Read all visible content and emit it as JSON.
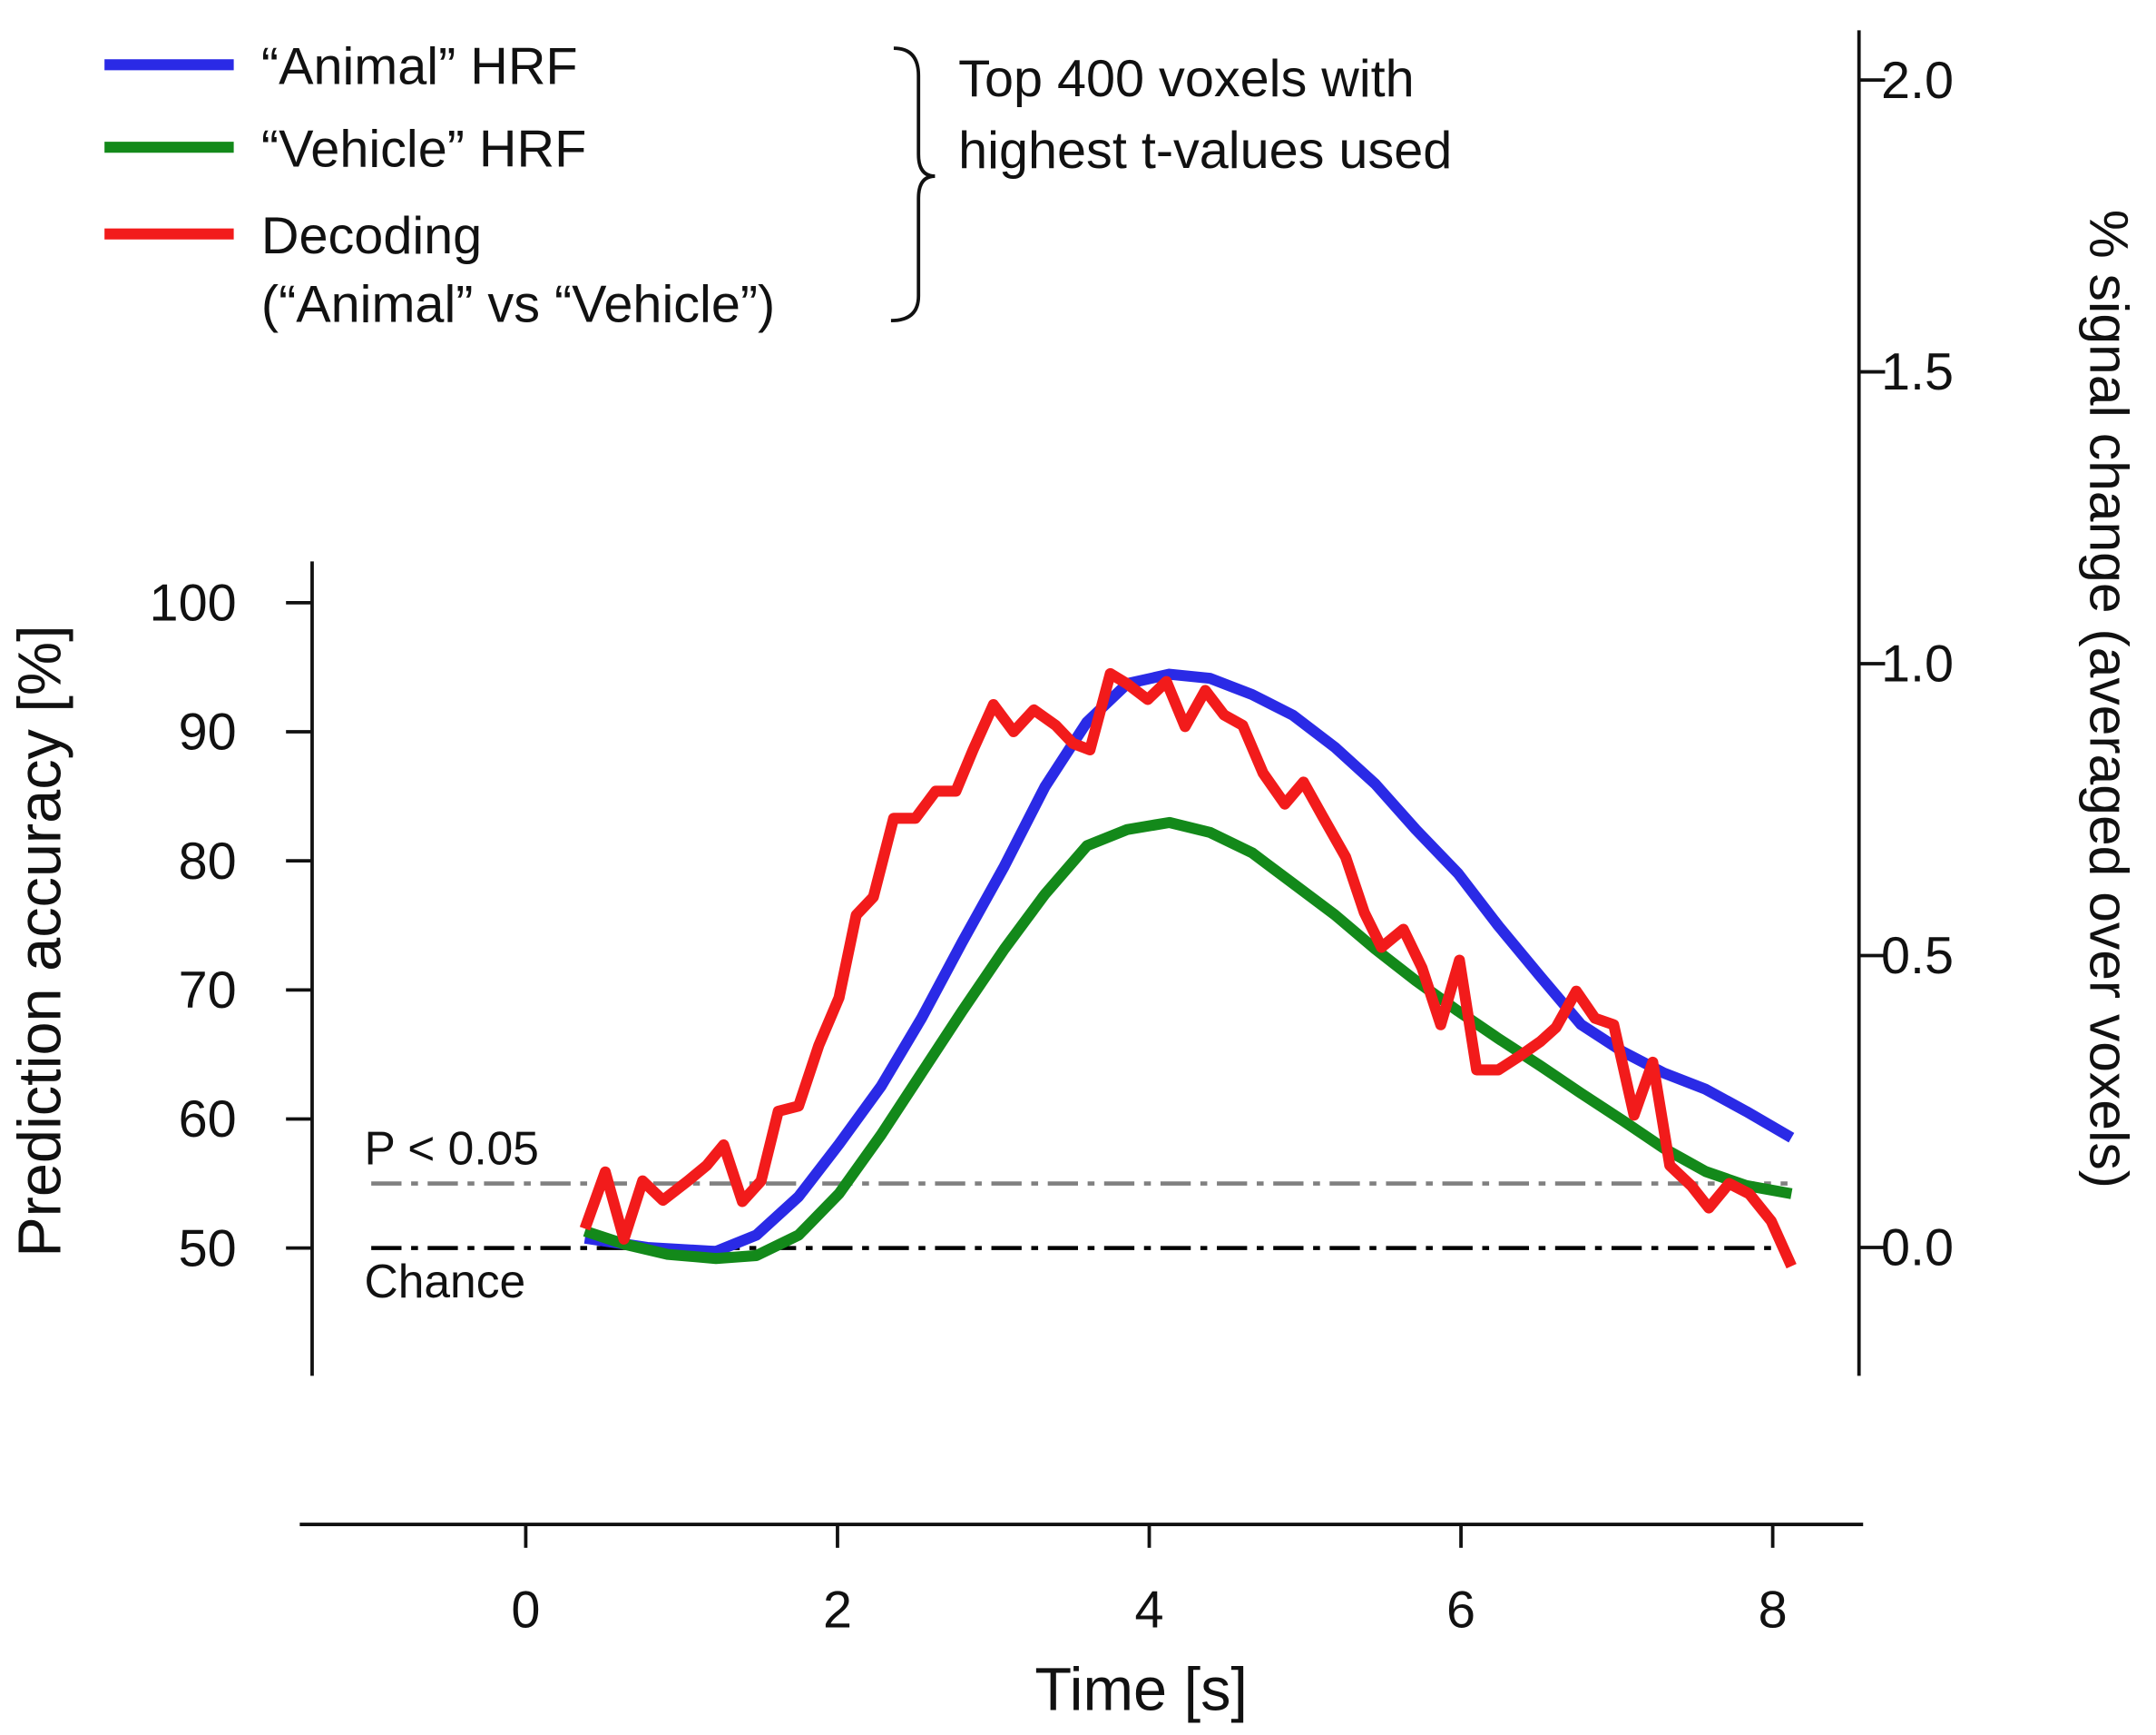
{
  "chart_data": {
    "type": "line",
    "x_label": "Time [s]",
    "y_label": "Prediction accuracy [%]",
    "y2_label": "% signal change (averaged over voxels)",
    "annotation_lines": [
      "Top 400 voxels with",
      "highest t-values used"
    ],
    "xlim": [
      -1.45,
      8.58
    ],
    "xticks": [
      0,
      2,
      4,
      6,
      8
    ],
    "ylim": [
      40.1,
      103.2
    ],
    "yticks": [
      50,
      60,
      70,
      80,
      90,
      100
    ],
    "y2lim": [
      -0.22,
      2.085
    ],
    "y2ticks": [
      {
        "value": 0,
        "label": "0.0"
      },
      0.5,
      {
        "value": 1,
        "label": "1.0"
      },
      1.5,
      {
        "value": 2,
        "label": "2.0"
      }
    ],
    "reference_lines": [
      {
        "label": "P < 0.05",
        "value": 55,
        "color": "#808080"
      },
      {
        "label": "Chance",
        "value": 50,
        "color": "#000000"
      }
    ],
    "series": [
      {
        "name": "“Animal” HRF",
        "color": "#2a2ae6",
        "axis": "y2",
        "x": [
          0.38,
          0.78,
          1.22,
          1.48,
          1.75,
          2.01,
          2.28,
          2.54,
          2.8,
          3.07,
          3.33,
          3.6,
          3.86,
          4.13,
          4.39,
          4.66,
          4.92,
          5.19,
          5.45,
          5.71,
          5.98,
          6.24,
          6.51,
          6.77,
          7.04,
          7.3,
          7.57,
          7.83,
          8.12
        ],
        "values": [
          0.016,
          0.0,
          -0.007,
          0.021,
          0.087,
          0.177,
          0.276,
          0.393,
          0.523,
          0.653,
          0.789,
          0.9,
          0.966,
          0.982,
          0.975,
          0.947,
          0.912,
          0.857,
          0.794,
          0.716,
          0.641,
          0.551,
          0.464,
          0.382,
          0.335,
          0.299,
          0.271,
          0.233,
          0.188
        ]
      },
      {
        "name": "“Vehicle” HRF",
        "color": "#13891a",
        "axis": "y2",
        "x": [
          0.38,
          0.64,
          0.91,
          1.22,
          1.48,
          1.75,
          2.01,
          2.28,
          2.54,
          2.8,
          3.07,
          3.33,
          3.6,
          3.86,
          4.13,
          4.39,
          4.66,
          4.92,
          5.19,
          5.45,
          5.71,
          5.98,
          6.24,
          6.51,
          6.77,
          7.04,
          7.3,
          7.57,
          7.83,
          8.12
        ],
        "values": [
          0.028,
          0.005,
          -0.012,
          -0.019,
          -0.014,
          0.021,
          0.092,
          0.193,
          0.299,
          0.405,
          0.511,
          0.605,
          0.688,
          0.716,
          0.728,
          0.711,
          0.676,
          0.624,
          0.57,
          0.511,
          0.457,
          0.405,
          0.358,
          0.311,
          0.264,
          0.217,
          0.17,
          0.13,
          0.106,
          0.092
        ]
      },
      {
        "name": "Decoding",
        "note": "(“Animal” vs “Vehicle”)",
        "color": "#f21b1b",
        "x": [
          0.38,
          0.51,
          0.63,
          0.75,
          0.88,
          1.04,
          1.16,
          1.27,
          1.39,
          1.51,
          1.62,
          1.75,
          1.88,
          2.01,
          2.12,
          2.23,
          2.36,
          2.5,
          2.63,
          2.76,
          2.87,
          3.0,
          3.13,
          3.26,
          3.4,
          3.51,
          3.62,
          3.75,
          3.86,
          3.99,
          4.11,
          4.23,
          4.36,
          4.48,
          4.6,
          4.73,
          4.87,
          4.99,
          5.11,
          5.26,
          5.38,
          5.49,
          5.63,
          5.75,
          5.87,
          5.99,
          6.1,
          6.24,
          6.38,
          6.51,
          6.61,
          6.74,
          6.86,
          6.98,
          7.11,
          7.23,
          7.34,
          7.48,
          7.59,
          7.72,
          7.85,
          7.99,
          8.12
        ],
        "values": [
          51.5,
          55.9,
          50.7,
          55.2,
          53.7,
          55.2,
          56.4,
          58.0,
          53.6,
          55.2,
          60.6,
          61.0,
          65.7,
          69.4,
          75.8,
          77.2,
          83.3,
          83.3,
          85.4,
          85.4,
          88.6,
          92.1,
          90.0,
          91.7,
          90.5,
          89.1,
          88.6,
          94.5,
          93.7,
          92.5,
          93.9,
          90.4,
          93.2,
          91.3,
          90.5,
          86.8,
          84.4,
          86.1,
          83.5,
          80.3,
          76.0,
          73.3,
          74.7,
          71.7,
          67.3,
          72.3,
          63.8,
          63.8,
          64.9,
          66.0,
          67.1,
          69.9,
          67.8,
          67.3,
          60.3,
          64.4,
          56.4,
          54.8,
          53.1,
          55.0,
          54.2,
          52.1,
          48.6
        ]
      }
    ]
  }
}
